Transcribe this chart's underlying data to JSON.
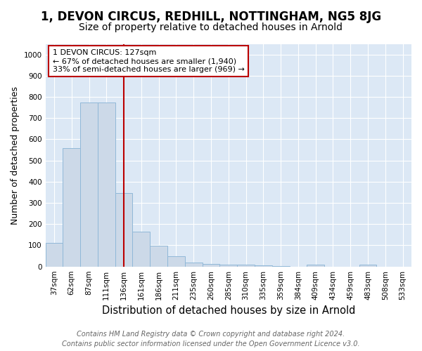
{
  "title": "1, DEVON CIRCUS, REDHILL, NOTTINGHAM, NG5 8JG",
  "subtitle": "Size of property relative to detached houses in Arnold",
  "xlabel": "Distribution of detached houses by size in Arnold",
  "ylabel": "Number of detached properties",
  "categories": [
    "37sqm",
    "62sqm",
    "87sqm",
    "111sqm",
    "136sqm",
    "161sqm",
    "186sqm",
    "211sqm",
    "235sqm",
    "260sqm",
    "285sqm",
    "310sqm",
    "335sqm",
    "359sqm",
    "384sqm",
    "409sqm",
    "434sqm",
    "459sqm",
    "483sqm",
    "508sqm",
    "533sqm"
  ],
  "values": [
    110,
    560,
    775,
    775,
    345,
    163,
    97,
    50,
    18,
    12,
    10,
    8,
    5,
    3,
    0,
    8,
    0,
    0,
    8,
    0,
    0
  ],
  "bar_color": "#ccd9e8",
  "bar_edge_color": "#90b8d8",
  "bar_width": 1.0,
  "red_line_x": 4.5,
  "red_line_color": "#bb0000",
  "annotation_text": "1 DEVON CIRCUS: 127sqm\n← 67% of detached houses are smaller (1,940)\n33% of semi-detached houses are larger (969) →",
  "annotation_box_facecolor": "#ffffff",
  "annotation_box_edgecolor": "#bb0000",
  "ylim": [
    0,
    1050
  ],
  "yticks": [
    0,
    100,
    200,
    300,
    400,
    500,
    600,
    700,
    800,
    900,
    1000
  ],
  "fig_background": "#ffffff",
  "plot_background": "#dce8f5",
  "grid_color": "#ffffff",
  "footer_text": "Contains HM Land Registry data © Crown copyright and database right 2024.\nContains public sector information licensed under the Open Government Licence v3.0.",
  "title_fontsize": 12,
  "subtitle_fontsize": 10,
  "xlabel_fontsize": 10.5,
  "ylabel_fontsize": 9,
  "tick_fontsize": 7.5,
  "annotation_fontsize": 8,
  "footer_fontsize": 7
}
